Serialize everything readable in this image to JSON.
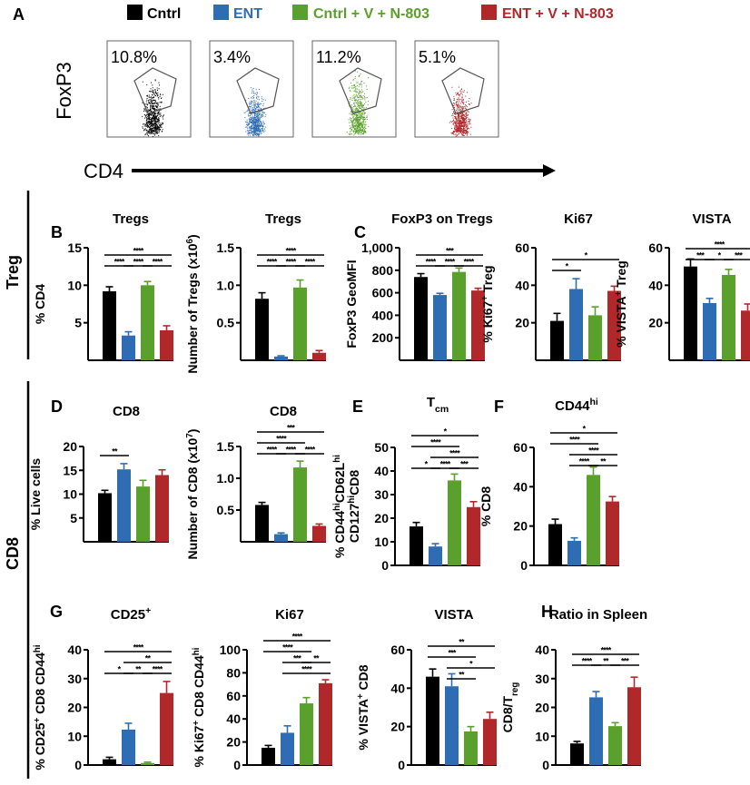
{
  "legend": [
    {
      "label": "Cntrl",
      "color": "#000000"
    },
    {
      "label": "ENT",
      "color": "#2e6db4"
    },
    {
      "label": "Cntrl + V + N-803",
      "color": "#5aa02c"
    },
    {
      "label": "ENT + V + N-803",
      "color": "#b0282a"
    }
  ],
  "panel_letters": {
    "A": "A",
    "B": "B",
    "C": "C",
    "D": "D",
    "E": "E",
    "F": "F",
    "G": "G",
    "H": "H"
  },
  "sections": {
    "treg": "Treg",
    "cd8": "CD8"
  },
  "flow": {
    "y_label": "FoxP3",
    "x_label": "CD4",
    "percentages": [
      "10.8%",
      "3.4%",
      "11.2%",
      "5.1%"
    ]
  },
  "chart_data": [
    {
      "id": "B1",
      "type": "bar",
      "title": "Tregs",
      "ylabel": [
        "% CD4"
      ],
      "ylim": [
        0,
        15
      ],
      "ticks": [
        5,
        10,
        15
      ],
      "tick_labels": [
        "5",
        "10",
        "15"
      ],
      "categories": [
        "Cntrl",
        "ENT",
        "Cntrl + V + N-803",
        "ENT + V + N-803"
      ],
      "values": [
        9.2,
        3.3,
        10.0,
        4.0
      ],
      "errors": [
        0.6,
        0.5,
        0.5,
        0.6
      ],
      "significance": [
        [
          0,
          1,
          "****",
          0
        ],
        [
          1,
          2,
          "****",
          0
        ],
        [
          2,
          3,
          "****",
          0
        ],
        [
          0,
          3,
          "****",
          1
        ]
      ]
    },
    {
      "id": "B2",
      "type": "bar",
      "title": "Tregs",
      "ylabel": [
        "Number of Tregs (x10^{6})"
      ],
      "ylim": [
        0,
        1.5
      ],
      "ticks": [
        0.5,
        1.0,
        1.5
      ],
      "tick_labels": [
        "0.5",
        "1.0",
        "1.5"
      ],
      "categories": [
        "Cntrl",
        "ENT",
        "Cntrl + V + N-803",
        "ENT + V + N-803"
      ],
      "values": [
        0.82,
        0.05,
        0.97,
        0.1
      ],
      "errors": [
        0.08,
        0.01,
        0.1,
        0.03
      ],
      "significance": [
        [
          0,
          1,
          "****",
          0
        ],
        [
          1,
          2,
          "****",
          0
        ],
        [
          2,
          3,
          "****",
          0
        ],
        [
          0,
          3,
          "****",
          1
        ]
      ]
    },
    {
      "id": "C1",
      "type": "bar",
      "title": "FoxP3 on Tregs",
      "ylabel": [
        "FoxP3 GeoMFI"
      ],
      "ylim": [
        0,
        1000
      ],
      "ticks": [
        200,
        400,
        600,
        800,
        1000
      ],
      "tick_labels": [
        "200",
        "400",
        "600",
        "800",
        "1,000"
      ],
      "categories": [
        "Cntrl",
        "ENT",
        "Cntrl + V + N-803",
        "ENT + V + N-803"
      ],
      "values": [
        740,
        580,
        785,
        620
      ],
      "errors": [
        30,
        15,
        35,
        20
      ],
      "significance": [
        [
          0,
          1,
          "****",
          0
        ],
        [
          1,
          2,
          "****",
          0
        ],
        [
          2,
          3,
          "****",
          0
        ],
        [
          0,
          3,
          "***",
          1
        ]
      ]
    },
    {
      "id": "C2",
      "type": "bar",
      "title": "Ki67",
      "ylabel": [
        "% Ki67^{+} Treg"
      ],
      "ylim": [
        0,
        60
      ],
      "ticks": [
        20,
        40,
        60
      ],
      "tick_labels": [
        "20",
        "40",
        "60"
      ],
      "categories": [
        "Cntrl",
        "ENT",
        "Cntrl + V + N-803",
        "ENT + V + N-803"
      ],
      "values": [
        21,
        38,
        24,
        37
      ],
      "errors": [
        4,
        5.5,
        4.5,
        2.5
      ],
      "significance": [
        [
          0,
          1,
          "*",
          0
        ],
        [
          0,
          3,
          "*",
          1
        ]
      ]
    },
    {
      "id": "C3",
      "type": "bar",
      "title": "VISTA",
      "ylabel": [
        "% VISTA^{+} Treg"
      ],
      "ylim": [
        0,
        60
      ],
      "ticks": [
        20,
        40,
        60
      ],
      "tick_labels": [
        "20",
        "40",
        "60"
      ],
      "categories": [
        "Cntrl",
        "ENT",
        "Cntrl + V + N-803",
        "ENT + V + N-803"
      ],
      "values": [
        50,
        30.5,
        45.5,
        26.5
      ],
      "errors": [
        4,
        2.5,
        3,
        3.5
      ],
      "significance": [
        [
          0,
          1,
          "***",
          0
        ],
        [
          1,
          2,
          "*",
          0
        ],
        [
          2,
          3,
          "***",
          0
        ],
        [
          0,
          3,
          "****",
          1
        ]
      ]
    },
    {
      "id": "D1",
      "type": "bar",
      "title": "CD8",
      "ylabel": [
        "% Live cells"
      ],
      "ylim": [
        0,
        20
      ],
      "ticks": [
        5,
        10,
        15,
        20
      ],
      "tick_labels": [
        "5",
        "10",
        "15",
        "20"
      ],
      "categories": [
        "Cntrl",
        "ENT",
        "Cntrl + V + N-803",
        "ENT + V + N-803"
      ],
      "values": [
        10.2,
        15.2,
        11.6,
        14.0
      ],
      "errors": [
        0.6,
        1.2,
        1.3,
        1.1
      ],
      "significance": [
        [
          0,
          1,
          "**",
          0
        ]
      ]
    },
    {
      "id": "D2",
      "type": "bar",
      "title": "CD8",
      "ylabel": [
        "Number of CD8 (x10^{7})"
      ],
      "ylim": [
        0,
        1.5
      ],
      "ticks": [
        0.5,
        1.0,
        1.5
      ],
      "tick_labels": [
        "0.5",
        "1.0",
        "1.5"
      ],
      "categories": [
        "Cntrl",
        "ENT",
        "Cntrl + V + N-803",
        "ENT + V + N-803"
      ],
      "values": [
        0.58,
        0.12,
        1.17,
        0.25
      ],
      "errors": [
        0.04,
        0.02,
        0.1,
        0.03
      ],
      "significance": [
        [
          0,
          1,
          "****",
          0
        ],
        [
          1,
          2,
          "****",
          0
        ],
        [
          2,
          3,
          "****",
          0
        ],
        [
          0,
          2,
          "****",
          1
        ],
        [
          0,
          3,
          "***",
          2
        ]
      ]
    },
    {
      "id": "E",
      "type": "bar",
      "title": "T_{cm}",
      "ylabel": [
        "% CD44^{hi}CD62L^{hi}",
        "CD127^{hi}CD8"
      ],
      "ylim": [
        0,
        50
      ],
      "ticks": [
        0,
        10,
        20,
        30,
        40,
        50
      ],
      "tick_labels": [
        "0",
        "10",
        "20",
        "30",
        "40",
        "50"
      ],
      "categories": [
        "Cntrl",
        "ENT",
        "Cntrl + V + N-803",
        "ENT + V + N-803"
      ],
      "values": [
        16.5,
        8,
        36,
        24.7
      ],
      "errors": [
        1.7,
        1.2,
        2.7,
        2.3
      ],
      "significance": [
        [
          0,
          1,
          "*",
          0
        ],
        [
          1,
          2,
          "****",
          0
        ],
        [
          2,
          3,
          "***",
          0
        ],
        [
          1,
          3,
          "****",
          1
        ],
        [
          0,
          2,
          "****",
          2
        ],
        [
          0,
          3,
          "*",
          3
        ]
      ]
    },
    {
      "id": "F",
      "type": "bar",
      "title": "CD44^{hi}",
      "ylabel": [
        "% CD8"
      ],
      "ylim": [
        0,
        60
      ],
      "ticks": [
        0,
        20,
        40,
        60
      ],
      "tick_labels": [
        "0",
        "20",
        "40",
        "60"
      ],
      "categories": [
        "Cntrl",
        "ENT",
        "Cntrl + V + N-803",
        "ENT + V + N-803"
      ],
      "values": [
        21,
        12.5,
        46,
        32.5
      ],
      "errors": [
        2.5,
        1.5,
        4,
        2.5
      ],
      "significance": [
        [
          1,
          2,
          "****",
          0
        ],
        [
          2,
          3,
          "**",
          0
        ],
        [
          1,
          3,
          "****",
          1
        ],
        [
          0,
          2,
          "****",
          2
        ],
        [
          0,
          3,
          "*",
          3
        ]
      ]
    },
    {
      "id": "G1",
      "type": "bar",
      "title": "CD25^{+}",
      "ylabel": [
        "% CD25^{+} CD8 CD44^{hi}"
      ],
      "ylim": [
        0,
        40
      ],
      "ticks": [
        0,
        10,
        20,
        30,
        40
      ],
      "tick_labels": [
        "0",
        "10",
        "20",
        "30",
        "40"
      ],
      "categories": [
        "Cntrl",
        "ENT",
        "Cntrl + V + N-803",
        "ENT + V + N-803"
      ],
      "values": [
        2,
        12.3,
        0.7,
        25
      ],
      "errors": [
        0.7,
        2.2,
        0.3,
        4
      ],
      "significance": [
        [
          0,
          1,
          "*",
          0
        ],
        [
          1,
          2,
          "**",
          0
        ],
        [
          2,
          3,
          "****",
          0
        ],
        [
          1,
          3,
          "**",
          1
        ],
        [
          0,
          3,
          "****",
          2
        ]
      ]
    },
    {
      "id": "G2",
      "type": "bar",
      "title": "Ki67",
      "ylabel": [
        "% Ki67^{+} CD8 CD44^{hi}"
      ],
      "ylim": [
        0,
        100
      ],
      "ticks": [
        0,
        20,
        40,
        60,
        80,
        100
      ],
      "tick_labels": [
        "0",
        "20",
        "40",
        "60",
        "80",
        "100"
      ],
      "categories": [
        "Cntrl",
        "ENT",
        "Cntrl + V + N-803",
        "ENT + V + N-803"
      ],
      "values": [
        15,
        28,
        53.5,
        71
      ],
      "errors": [
        2,
        6,
        5,
        3
      ],
      "significance": [
        [
          1,
          3,
          "****",
          0
        ],
        [
          1,
          2,
          "***",
          1
        ],
        [
          2,
          3,
          "**",
          1
        ],
        [
          0,
          2,
          "****",
          2
        ],
        [
          0,
          3,
          "****",
          3
        ]
      ]
    },
    {
      "id": "G3",
      "type": "bar",
      "title": "VISTA",
      "ylabel": [
        "% VISTA^{+} CD8"
      ],
      "ylim": [
        0,
        60
      ],
      "ticks": [
        0,
        20,
        40,
        60
      ],
      "tick_labels": [
        "0",
        "20",
        "40",
        "60"
      ],
      "categories": [
        "Cntrl",
        "ENT",
        "Cntrl + V + N-803",
        "ENT + V + N-803"
      ],
      "values": [
        46,
        41,
        17.5,
        24
      ],
      "errors": [
        4,
        6.5,
        2.5,
        3.5
      ],
      "significance": [
        [
          1,
          2,
          "**",
          0
        ],
        [
          1,
          3,
          "*",
          1
        ],
        [
          0,
          2,
          "***",
          2
        ],
        [
          0,
          3,
          "**",
          3
        ]
      ]
    },
    {
      "id": "H",
      "type": "bar",
      "title": "Ratio in Spleen",
      "ylabel": [
        "CD8/T_{reg}"
      ],
      "ylim": [
        0,
        40
      ],
      "ticks": [
        0,
        10,
        20,
        30,
        40
      ],
      "tick_labels": [
        "0",
        "10",
        "20",
        "30",
        "40"
      ],
      "categories": [
        "Cntrl",
        "ENT",
        "Cntrl + V + N-803",
        "ENT + V + N-803"
      ],
      "values": [
        7.5,
        23.5,
        13.5,
        27
      ],
      "errors": [
        0.7,
        2,
        1.2,
        3.5
      ],
      "significance": [
        [
          0,
          1,
          "****",
          0
        ],
        [
          1,
          2,
          "**",
          0
        ],
        [
          2,
          3,
          "***",
          0
        ],
        [
          0,
          3,
          "****",
          1
        ]
      ]
    }
  ]
}
